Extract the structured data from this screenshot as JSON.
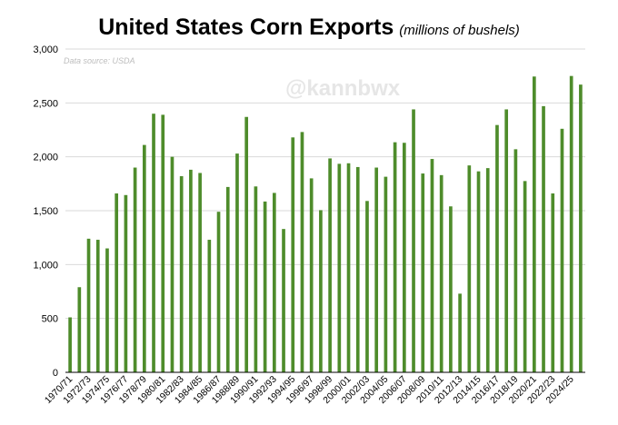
{
  "title": "United States Corn Exports",
  "subtitle": "(millions  of bushels)",
  "source": "Data source: USDA",
  "watermark": "@kannbwx",
  "colors": {
    "bar": "#4e8c2b",
    "grid": "#d9d9d9"
  },
  "chart_data": {
    "type": "bar",
    "title": "United States Corn Exports",
    "subtitle": "(millions  of bushels)",
    "xlabel": "",
    "ylabel": "",
    "ylim": [
      0,
      3000
    ],
    "yticks": [
      0,
      500,
      1000,
      1500,
      2000,
      2500,
      3000
    ],
    "ytick_labels": [
      "0",
      "500",
      "1,000",
      "1,500",
      "2,000",
      "2,500",
      "3,000"
    ],
    "grid": true,
    "categories": [
      "1970/71",
      "1971/72",
      "1972/73",
      "1973/74",
      "1974/75",
      "1975/76",
      "1976/77",
      "1977/78",
      "1978/79",
      "1979/80",
      "1980/81",
      "1981/82",
      "1982/83",
      "1983/84",
      "1984/85",
      "1985/86",
      "1986/87",
      "1987/88",
      "1988/89",
      "1989/90",
      "1990/91",
      "1991/92",
      "1992/93",
      "1993/94",
      "1994/95",
      "1995/96",
      "1996/97",
      "1997/98",
      "1998/99",
      "1999/00",
      "2000/01",
      "2001/02",
      "2002/03",
      "2003/04",
      "2004/05",
      "2005/06",
      "2006/07",
      "2007/08",
      "2008/09",
      "2009/10",
      "2010/11",
      "2011/12",
      "2012/13",
      "2013/14",
      "2014/15",
      "2015/16",
      "2016/17",
      "2017/18",
      "2018/19",
      "2019/20",
      "2020/21",
      "2021/22",
      "2022/23",
      "2023/24",
      "2024/25",
      "2025/26"
    ],
    "x_tick_labels": [
      "1970/71",
      "1972/73",
      "1974/75",
      "1976/77",
      "1978/79",
      "1980/81",
      "1982/83",
      "1984/85",
      "1986/87",
      "1988/89",
      "1990/91",
      "1992/93",
      "1994/95",
      "1996/97",
      "1998/99",
      "2000/01",
      "2002/03",
      "2004/05",
      "2006/07",
      "2008/09",
      "2010/11",
      "2012/13",
      "2014/15",
      "2016/17",
      "2018/19",
      "2020/21",
      "2022/23",
      "2024/25"
    ],
    "values": [
      510,
      790,
      1240,
      1230,
      1150,
      1660,
      1645,
      1900,
      2110,
      2400,
      2390,
      2000,
      1820,
      1880,
      1850,
      1230,
      1490,
      1720,
      2030,
      2370,
      1725,
      1585,
      1665,
      1330,
      2180,
      2230,
      1800,
      1505,
      1985,
      1935,
      1940,
      1905,
      1590,
      1900,
      1815,
      2135,
      2130,
      2440,
      1845,
      1980,
      1830,
      1540,
      730,
      1920,
      1865,
      1895,
      2295,
      2440,
      2070,
      1775,
      2745,
      2470,
      1660,
      2260,
      2750,
      2670
    ]
  }
}
